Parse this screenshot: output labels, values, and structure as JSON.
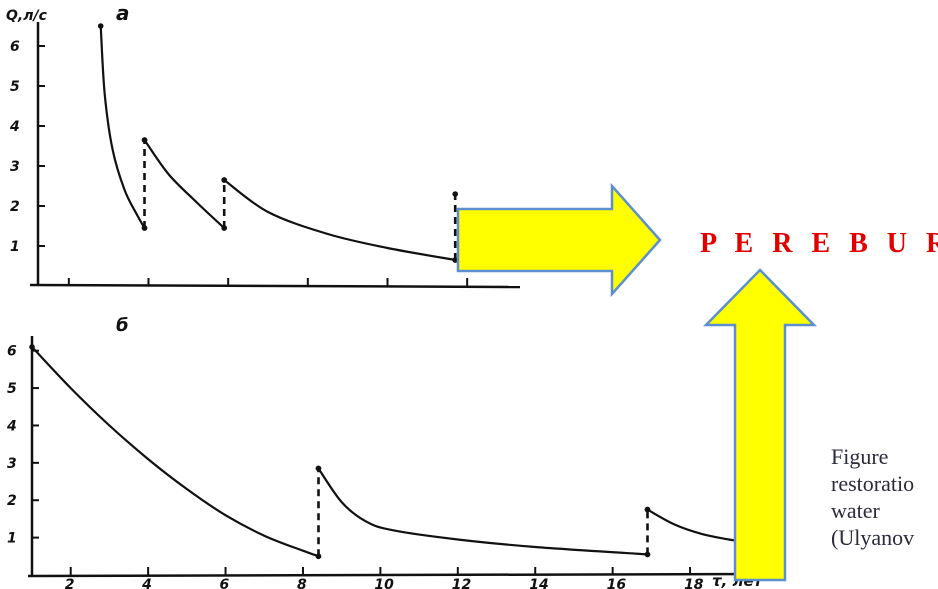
{
  "chart_data": [
    {
      "panel_label": "а",
      "type": "line",
      "ylabel": "Q,л/с",
      "xlabel": "",
      "xlim": [
        1,
        13
      ],
      "ylim": [
        0,
        6.6
      ],
      "y_ticks": [
        1,
        2,
        3,
        4,
        5,
        6
      ],
      "x_ticks": [
        2,
        4,
        6,
        8,
        10,
        12
      ],
      "x_tick_labels_shown": false,
      "series": [
        {
          "x": [
            2.8,
            2.9,
            3.1,
            3.4,
            3.7,
            3.9
          ],
          "y": [
            6.5,
            4.8,
            3.4,
            2.4,
            1.8,
            1.45
          ],
          "dashed": false
        },
        {
          "x": [
            3.9,
            3.9
          ],
          "y": [
            1.45,
            3.65
          ],
          "dashed": true
        },
        {
          "x": [
            3.9,
            4.5,
            5.2,
            5.9
          ],
          "y": [
            3.65,
            2.8,
            2.1,
            1.45
          ],
          "dashed": false
        },
        {
          "x": [
            5.9,
            5.9
          ],
          "y": [
            1.45,
            2.65
          ],
          "dashed": true
        },
        {
          "x": [
            5.9,
            7.0,
            8.5,
            10.0,
            11.7
          ],
          "y": [
            2.65,
            1.85,
            1.3,
            0.95,
            0.65
          ],
          "dashed": false
        },
        {
          "x": [
            11.7,
            11.7
          ],
          "y": [
            0.65,
            2.3
          ],
          "dashed": true
        }
      ]
    },
    {
      "panel_label": "б",
      "type": "line",
      "ylabel": "",
      "xlabel": "τ, лет",
      "xlim": [
        1,
        19.6
      ],
      "ylim": [
        0,
        6.5
      ],
      "y_ticks": [
        1,
        2,
        3,
        4,
        5,
        6
      ],
      "x_ticks": [
        2,
        4,
        6,
        8,
        10,
        12,
        14,
        16,
        18
      ],
      "series": [
        {
          "x": [
            1.0,
            2.0,
            3.0,
            4.0,
            5.0,
            6.0,
            7.0,
            8.0,
            8.4
          ],
          "y": [
            6.1,
            5.0,
            4.0,
            3.1,
            2.3,
            1.6,
            1.05,
            0.65,
            0.5
          ],
          "dashed": false
        },
        {
          "x": [
            8.4,
            8.4
          ],
          "y": [
            0.5,
            2.85
          ],
          "dashed": true
        },
        {
          "x": [
            8.4,
            9.0,
            9.6,
            10.3,
            12.0,
            14.0,
            16.9
          ],
          "y": [
            2.85,
            1.95,
            1.45,
            1.2,
            0.95,
            0.75,
            0.55
          ],
          "dashed": false
        },
        {
          "x": [
            16.9,
            16.9
          ],
          "y": [
            0.55,
            1.75
          ],
          "dashed": true
        },
        {
          "x": [
            16.9,
            17.6,
            18.3,
            19.0,
            19.6
          ],
          "y": [
            1.75,
            1.35,
            1.1,
            0.95,
            0.85
          ],
          "dashed": false
        }
      ]
    }
  ],
  "annotations": {
    "perebur": "P E R E B U R",
    "caption_lines": [
      "Figure",
      "restoratio",
      "water",
      "(Ulyanov"
    ]
  },
  "colors": {
    "arrow_fill": "#ffff00",
    "arrow_stroke": "#5b8fd0",
    "perebur_text": "#e00000",
    "curve": "#111111"
  }
}
